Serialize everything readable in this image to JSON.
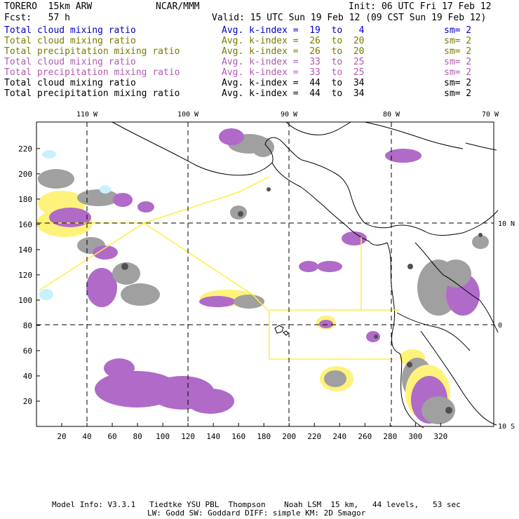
{
  "header": {
    "model": "TORERO  15km ARW",
    "org": "NCAR/MMM",
    "init": "Init: 06 UTC Fri 17 Feb 12",
    "fcst": "Fcst:   57 h",
    "valid": "Valid: 15 UTC Sun 19 Feb 12 (09 CST Sun 19 Feb 12)"
  },
  "legend": [
    {
      "field": "Total cloud mixing ratio",
      "k": "Avg. k-index =  19  to   4",
      "sm": "sm= 2",
      "color": "#0000cc"
    },
    {
      "field": "Total cloud mixing ratio",
      "k": "Avg. k-index =  26  to  20",
      "sm": "sm= 2",
      "color": "#7a7a00"
    },
    {
      "field": "Total precipitation mixing ratio",
      "k": "Avg. k-index =  26  to  20",
      "sm": "sm= 2",
      "color": "#7a7a00"
    },
    {
      "field": "Total cloud mixing ratio",
      "k": "Avg. k-index =  33  to  25",
      "sm": "sm= 2",
      "color": "#b05ab0"
    },
    {
      "field": "Total precipitation mixing ratio",
      "k": "Avg. k-index =  33  to  25",
      "sm": "sm= 2",
      "color": "#b05ab0"
    },
    {
      "field": "Total cloud mixing ratio",
      "k": "Avg. k-index =  44  to  34",
      "sm": "sm= 2",
      "color": "#000000"
    },
    {
      "field": "Total precipitation mixing ratio",
      "k": "Avg. k-index =  44  to  34",
      "sm": "sm= 2",
      "color": "#000000"
    }
  ],
  "axes": {
    "lon_labels": [
      "110 W",
      "100 W",
      "90 W",
      "80 W",
      "70 W"
    ],
    "lat_labels": [
      "10 N",
      "0",
      "10 S"
    ],
    "x_ticks": [
      "20",
      "40",
      "60",
      "80",
      "100",
      "120",
      "140",
      "160",
      "180",
      "200",
      "220",
      "240",
      "260",
      "280",
      "300",
      "320"
    ],
    "y_ticks": [
      "20",
      "40",
      "60",
      "80",
      "100",
      "120",
      "140",
      "160",
      "180",
      "200",
      "220"
    ]
  },
  "colors": {
    "cloud_light": "#c8f0ff",
    "cloud_yellow": "#fff27a",
    "cloud_purple": "#b06ac8",
    "cloud_gray": "#a0a0a0",
    "cloud_dark": "#505050",
    "flight_track": "#ffee44"
  },
  "footer": {
    "line1": "Model Info: V3.3.1   Tiedtke YSU PBL  Thompson    Noah LSM  15 km,   44 levels,   53 sec",
    "line2": "LW: Godd SW: Goddard DIFF: simple KM: 2D Smagor"
  }
}
